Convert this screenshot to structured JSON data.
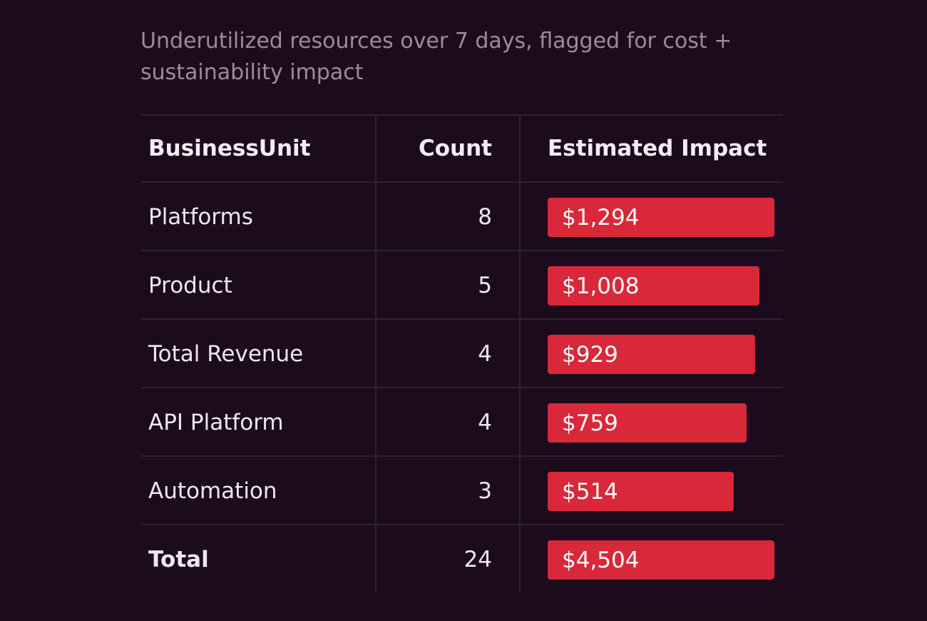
{
  "subtitle": "Underutilized resources over 7 days, flagged for cost + sustainability impact",
  "table": {
    "headers": {
      "unit": "BusinessUnit",
      "count": "Count",
      "impact": "Estimated Impact"
    },
    "rows": [
      {
        "unit": "Platforms",
        "count": "8",
        "impact": "$1,294",
        "impact_value": 1294
      },
      {
        "unit": "Product",
        "count": "5",
        "impact": "$1,008",
        "impact_value": 1008
      },
      {
        "unit": "Total Revenue",
        "count": "4",
        "impact": "$929",
        "impact_value": 929
      },
      {
        "unit": "API Platform",
        "count": "4",
        "impact": "$759",
        "impact_value": 759
      },
      {
        "unit": "Automation",
        "count": "3",
        "impact": "$514",
        "impact_value": 514
      }
    ],
    "total": {
      "unit": "Total",
      "count": "24",
      "impact": "$4,504",
      "impact_value": 4504
    }
  },
  "colors": {
    "background": "#1b0b1d",
    "bar": "#d92839",
    "subtitle": "#9b8c9c"
  }
}
